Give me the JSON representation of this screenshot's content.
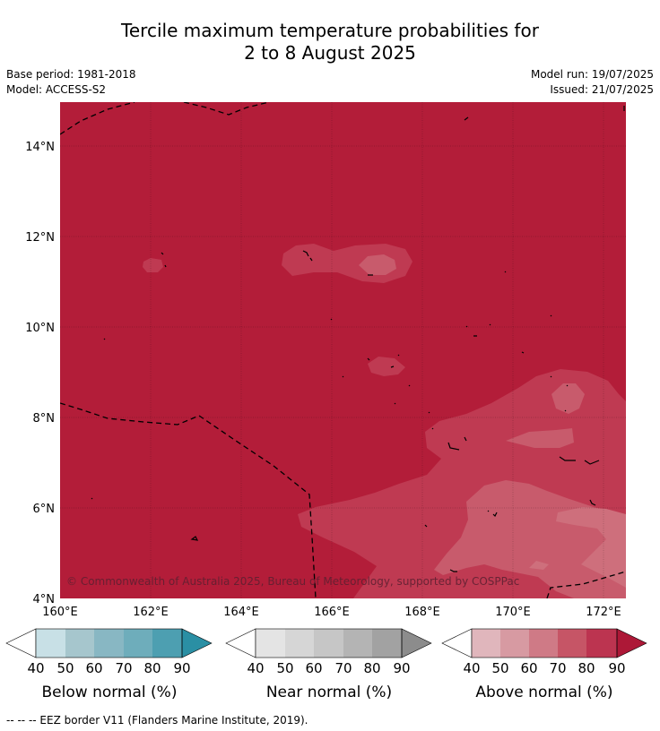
{
  "title": {
    "line1": "Tercile maximum temperature probabilities for",
    "line2": "2 to 8 August 2025"
  },
  "meta": {
    "base_period": "Base period: 1981-2018",
    "model": "Model: ACCESS-S2",
    "model_run": "Model run: 19/07/2025",
    "issued": "Issued: 21/07/2025"
  },
  "map": {
    "lat_labels": [
      "14°N",
      "12°N",
      "10°N",
      "8°N",
      "6°N",
      "4°N"
    ],
    "lon_labels": [
      "160°E",
      "162°E",
      "164°E",
      "166°E",
      "168°E",
      "170°E",
      "172°E"
    ],
    "copyright": "© Commonwealth of Australia 2025, Bureau of Meteorology, supported by COSPPac",
    "colors": {
      "above_80": "#b31d39",
      "above_70": "#bf3a52",
      "above_60": "#c85b6c",
      "above_50": "#ce6f7c"
    }
  },
  "colorbars": [
    {
      "label": "Below normal (%)",
      "ticks": [
        "40",
        "50",
        "60",
        "70",
        "80",
        "90"
      ],
      "colors": [
        "#c8e0e6",
        "#a6c6cd",
        "#88b7c3",
        "#6eadbb",
        "#4d9fb1",
        "#2a8fa4"
      ]
    },
    {
      "label": "Near normal (%)",
      "ticks": [
        "40",
        "50",
        "60",
        "70",
        "80",
        "90"
      ],
      "colors": [
        "#e4e4e4",
        "#d6d6d6",
        "#c6c6c6",
        "#b4b4b4",
        "#a2a2a2",
        "#8c8c8c"
      ]
    },
    {
      "label": "Above normal (%)",
      "ticks": [
        "40",
        "50",
        "60",
        "70",
        "80",
        "90"
      ],
      "colors": [
        "#e0b6bc",
        "#d79aa2",
        "#cf7a86",
        "#c65566",
        "#bc3450",
        "#ad1837"
      ]
    }
  ],
  "footer": "--  --  -- EEZ border V11 (Flanders Marine Institute, 2019)."
}
